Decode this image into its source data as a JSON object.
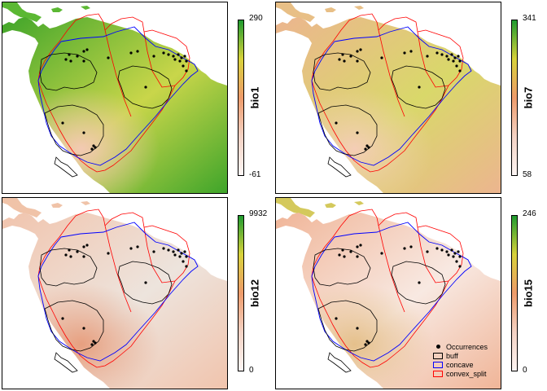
{
  "panels": [
    {
      "id": "bio1",
      "colorbar_title": "bio1",
      "max_label": "290",
      "min_label": "-61",
      "land_colors": {
        "base": "#3fa52a",
        "high": "#c9d64a",
        "low": "#f3c9b3",
        "coast": "#5bb833"
      }
    },
    {
      "id": "bio7",
      "colorbar_title": "bio7",
      "max_label": "341",
      "min_label": "58",
      "land_colors": {
        "base": "#ecb58f",
        "high": "#d9d86a",
        "low": "#f4cdb6",
        "coast": "#e8bf86"
      }
    },
    {
      "id": "bio12",
      "colorbar_title": "bio12",
      "max_label": "9932",
      "min_label": "0",
      "land_colors": {
        "base": "#f1c4ad",
        "high": "#ede4dd",
        "low": "#e79f7f",
        "coast": "#f0c3a8"
      }
    },
    {
      "id": "bio15",
      "colorbar_title": "bio15",
      "max_label": "246",
      "min_label": "0",
      "land_colors": {
        "base": "#f0b598",
        "high": "#f8e9e2",
        "low": "#e5c08b",
        "coast": "#d4c95c"
      }
    }
  ],
  "colorbar_colors": [
    "#1e9b2f",
    "#d8d23a",
    "#ee9b6a",
    "#f4d2c4",
    "#fdf6f4"
  ],
  "legend": {
    "items": [
      {
        "label": "Occurrences",
        "symbol": "dot",
        "color": "#000000"
      },
      {
        "label": "buff",
        "symbol": "box",
        "color": "#000000"
      },
      {
        "label": "concave",
        "symbol": "box",
        "color": "#0000ff"
      },
      {
        "label": "convex_split",
        "symbol": "box",
        "color": "#ff0000"
      }
    ]
  },
  "series_colors": {
    "buff": "#000000",
    "concave": "#0000ff",
    "convex_split": "#ff0000",
    "occurrence": "#000000"
  }
}
